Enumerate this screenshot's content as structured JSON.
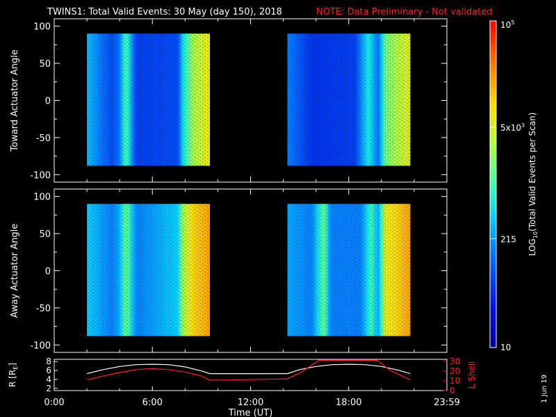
{
  "header": {
    "title": "TWINS1: Total Valid Events: 30 May (day 150), 2018",
    "note": "NOTE: Data Preliminary - Not validated"
  },
  "colors": {
    "background": "#000000",
    "axes": "#ffffff",
    "note": "#ff2020",
    "r_line": "#ffffff",
    "lshell_line": "#ff2020"
  },
  "colorbar": {
    "label": "LOG10(Total Valid Events per Scan)",
    "label_parts": [
      "LOG",
      "10",
      "(Total Valid Events per Scan)"
    ],
    "scale": "log",
    "range": [
      10,
      100000
    ],
    "ticks": [
      {
        "value": 100000,
        "base": "10",
        "exp": "5"
      },
      {
        "value": 5000,
        "base": "5x10",
        "exp": "3"
      },
      {
        "value": 215,
        "base": "215",
        "exp": ""
      },
      {
        "value": 10,
        "base": "10",
        "exp": ""
      }
    ],
    "palette": "rainbow (blue-cyan-green-yellow-red)"
  },
  "side_text": "1 Jun 19",
  "chart_data": [
    {
      "type": "heatmap",
      "name": "toward",
      "ylabel": "Toward Actuator Angle",
      "ylim": [
        -110,
        110
      ],
      "yticks": [
        100,
        50,
        0,
        -50,
        -100
      ],
      "xlim_hours": [
        0,
        24
      ],
      "blocks": [
        {
          "x_start": "2:00",
          "x_end": "9:30",
          "y_range": [
            -88,
            90
          ],
          "profile": [
            [
              0.0,
              0.38
            ],
            [
              0.2,
              0.22
            ],
            [
              0.26,
              0.28
            ],
            [
              0.32,
              0.52
            ],
            [
              0.4,
              0.2
            ],
            [
              0.74,
              0.22
            ],
            [
              0.78,
              0.42
            ],
            [
              0.86,
              0.6
            ],
            [
              1.0,
              0.72
            ]
          ]
        },
        {
          "x_start": "14:15",
          "x_end": "21:45",
          "y_range": [
            -88,
            90
          ],
          "profile": [
            [
              0.0,
              0.3
            ],
            [
              0.2,
              0.18
            ],
            [
              0.55,
              0.2
            ],
            [
              0.66,
              0.45
            ],
            [
              0.74,
              0.28
            ],
            [
              0.8,
              0.55
            ],
            [
              1.0,
              0.7
            ]
          ]
        }
      ]
    },
    {
      "type": "heatmap",
      "name": "away",
      "ylabel": "Away Actuator Angle",
      "ylim": [
        -110,
        110
      ],
      "yticks": [
        100,
        50,
        0,
        -50,
        -100
      ],
      "xlim_hours": [
        0,
        24
      ],
      "blocks": [
        {
          "x_start": "2:00",
          "x_end": "9:30",
          "y_range": [
            -88,
            90
          ],
          "profile": [
            [
              0.0,
              0.4
            ],
            [
              0.2,
              0.3
            ],
            [
              0.26,
              0.35
            ],
            [
              0.32,
              0.55
            ],
            [
              0.4,
              0.3
            ],
            [
              0.74,
              0.4
            ],
            [
              0.78,
              0.6
            ],
            [
              0.86,
              0.75
            ],
            [
              1.0,
              0.82
            ]
          ]
        },
        {
          "x_start": "14:15",
          "x_end": "21:45",
          "y_range": [
            -88,
            90
          ],
          "profile": [
            [
              0.0,
              0.35
            ],
            [
              0.2,
              0.3
            ],
            [
              0.3,
              0.55
            ],
            [
              0.35,
              0.3
            ],
            [
              0.6,
              0.3
            ],
            [
              0.68,
              0.5
            ],
            [
              0.74,
              0.35
            ],
            [
              0.8,
              0.7
            ],
            [
              1.0,
              0.82
            ]
          ]
        }
      ]
    },
    {
      "type": "line",
      "name": "orbit",
      "xlabel": "Time (UT)",
      "xticks": [
        "0:00",
        "6:00",
        "12:00",
        "18:00",
        "23:59"
      ],
      "left_axis": {
        "label": "R [R",
        "label_sub": "E",
        "label_end": "]",
        "ticks": [
          2,
          4,
          6,
          8
        ],
        "ylim": [
          1.5,
          8.5
        ]
      },
      "right_axis": {
        "label": "L Shell",
        "ticks": [
          0,
          10,
          20,
          30
        ],
        "ylim": [
          0,
          32
        ]
      },
      "series": [
        {
          "name": "R [RE]",
          "axis": "left",
          "x": [
            "2:00",
            "3:00",
            "4:00",
            "5:00",
            "6:00",
            "7:00",
            "8:00",
            "9:00",
            "9:30",
            "14:15",
            "15:00",
            "16:00",
            "17:00",
            "18:00",
            "19:00",
            "20:00",
            "21:00",
            "21:45"
          ],
          "y": [
            5.3,
            6.2,
            6.9,
            7.3,
            7.4,
            7.3,
            6.8,
            5.9,
            5.3,
            5.3,
            6.2,
            6.9,
            7.3,
            7.4,
            7.3,
            6.9,
            6.1,
            5.3
          ]
        },
        {
          "name": "L Shell",
          "axis": "right",
          "x": [
            "2:00",
            "3:00",
            "4:00",
            "5:00",
            "6:00",
            "7:00",
            "8:00",
            "9:00",
            "9:30",
            "14:15",
            "15:00",
            "15:45",
            "16:10",
            "19:45",
            "20:30",
            "21:00",
            "21:45"
          ],
          "y": [
            11,
            15,
            18.5,
            21.5,
            22.5,
            21.5,
            19,
            15,
            10.5,
            12,
            18,
            26,
            31,
            31,
            21,
            17,
            11
          ]
        }
      ]
    }
  ]
}
